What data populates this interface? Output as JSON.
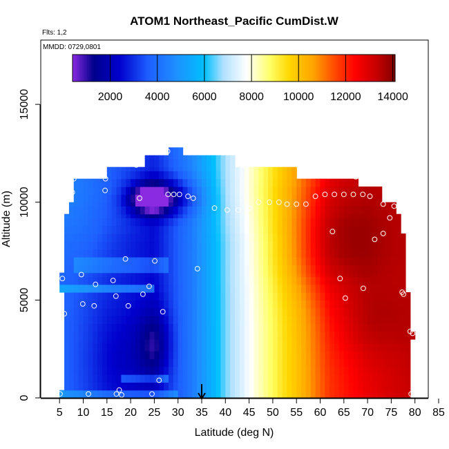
{
  "chart_data": {
    "type": "heatmap",
    "title": "ATOM1 Northeast_Pacific CumDist.W",
    "annotations": {
      "flights": "Flts: 1,2",
      "dates": "MMDD: 0729,0801"
    },
    "xlabel": "Latitude (deg N)",
    "ylabel": "Altitude (m)",
    "xlim": [
      5,
      85
    ],
    "ylim": [
      0,
      17500
    ],
    "xticks": [
      5,
      10,
      15,
      20,
      25,
      30,
      35,
      40,
      45,
      50,
      55,
      60,
      65,
      70,
      75,
      80,
      85
    ],
    "yticks": [
      0,
      5000,
      10000,
      15000
    ],
    "x_tick_labels": [
      "5",
      "10",
      "15",
      "20",
      "25",
      "30",
      "35",
      "40",
      "45",
      "50",
      "55",
      "60",
      "65",
      "70",
      "75",
      "80",
      "85"
    ],
    "y_tick_labels": [
      "0",
      "5000",
      "10000",
      "15000"
    ],
    "colorbar": {
      "range": [
        400,
        14100
      ],
      "ticks": [
        2000,
        4000,
        6000,
        8000,
        10000,
        12000,
        14000
      ],
      "tick_labels": [
        "2000",
        "4000",
        "6000",
        "8000",
        "10000",
        "12000",
        "14000"
      ],
      "dividers": [
        400,
        2000,
        4000,
        6000,
        8000,
        10000,
        12000,
        14000
      ],
      "stops": [
        {
          "v": 400,
          "color": "#8a2be2"
        },
        {
          "v": 1300,
          "color": "#00008b"
        },
        {
          "v": 2400,
          "color": "#0000cd"
        },
        {
          "v": 3600,
          "color": "#1e5eff"
        },
        {
          "v": 4800,
          "color": "#1e90ff"
        },
        {
          "v": 6000,
          "color": "#00bfff"
        },
        {
          "v": 6800,
          "color": "#b0e0ff"
        },
        {
          "v": 7800,
          "color": "#ffffff"
        },
        {
          "v": 8800,
          "color": "#ffff66"
        },
        {
          "v": 9600,
          "color": "#ffd700"
        },
        {
          "v": 10600,
          "color": "#ffa500"
        },
        {
          "v": 11600,
          "color": "#ff4500"
        },
        {
          "v": 12400,
          "color": "#ff0000"
        },
        {
          "v": 13400,
          "color": "#c00000"
        },
        {
          "v": 14100,
          "color": "#800000"
        }
      ]
    },
    "arrow_marker": {
      "latitude": 35
    },
    "grid": false,
    "legend": "none",
    "coverage": [
      {
        "y0": 0,
        "y1": 400,
        "x0": 5,
        "x1": 79
      },
      {
        "y0": 400,
        "y1": 3000,
        "x0": 6,
        "x1": 79
      },
      {
        "y0": 3000,
        "y1": 3400,
        "x0": 6,
        "x1": 80
      },
      {
        "y0": 3400,
        "y1": 5400,
        "x0": 6,
        "x1": 79
      },
      {
        "y0": 5400,
        "y1": 6400,
        "x0": 5,
        "x1": 78
      },
      {
        "y0": 6400,
        "y1": 8400,
        "x0": 6,
        "x1": 78
      },
      {
        "y0": 8400,
        "y1": 9400,
        "x0": 6,
        "x1": 77
      },
      {
        "y0": 9400,
        "y1": 10000,
        "x0": 7,
        "x1": 76
      },
      {
        "y0": 10000,
        "y1": 10800,
        "x0": 8,
        "x1": 73
      },
      {
        "y0": 10800,
        "y1": 11200,
        "x0": 8,
        "x1": 68
      },
      {
        "y0": 11200,
        "y1": 11800,
        "x0": 15,
        "x1": 55
      },
      {
        "y0": 11800,
        "y1": 12400,
        "x0": 23,
        "x1": 42
      },
      {
        "y0": 12400,
        "y1": 12800,
        "x0": 28,
        "x1": 31
      }
    ],
    "value_field": {
      "base": {
        "x": [
          5,
          15,
          25,
          33,
          40,
          47,
          55,
          62,
          70,
          79
        ],
        "v": [
          3800,
          3000,
          2500,
          4300,
          6500,
          8200,
          10000,
          11800,
          12700,
          13300
        ]
      },
      "upper_shift": {
        "x": [
          5,
          15,
          25,
          35,
          45,
          55,
          65,
          75,
          80
        ],
        "dv": [
          800,
          700,
          400,
          300,
          300,
          600,
          800,
          300,
          0
        ]
      },
      "blobs": [
        {
          "x": 24,
          "y": 10200,
          "sx": 3,
          "sy": 500,
          "dv": -3000
        },
        {
          "x": 28,
          "y": 10300,
          "sx": 5,
          "sy": 700,
          "dv": -1800
        },
        {
          "x": 25,
          "y": 2800,
          "sx": 2.5,
          "sy": 1200,
          "dv": -1300
        },
        {
          "x": 18,
          "y": 2000,
          "sx": 5,
          "sy": 1800,
          "dv": -600
        },
        {
          "x": 63,
          "y": 7800,
          "sx": 8,
          "sy": 1700,
          "dv": 1600
        },
        {
          "x": 70,
          "y": 4000,
          "sx": 6,
          "sy": 1400,
          "dv": 700
        },
        {
          "x": 11,
          "y": 8200,
          "sx": 5,
          "sy": 1200,
          "dv": 400
        }
      ],
      "bands": [
        {
          "y0": 5400,
          "y1": 5800,
          "x0": 5,
          "x1": 25,
          "dv": 1500
        },
        {
          "y0": 6600,
          "y1": 7200,
          "x0": 8,
          "x1": 28,
          "dv": 900
        },
        {
          "y0": 1000,
          "y1": 1400,
          "x0": 18,
          "x1": 28,
          "dv": 1200
        },
        {
          "y0": 0,
          "y1": 400,
          "x0": 5,
          "x1": 30,
          "dv": 1200
        }
      ]
    },
    "points": [
      [
        5.1,
        200
      ],
      [
        11.1,
        200
      ],
      [
        17.6,
        400
      ],
      [
        17,
        200
      ],
      [
        18.1,
        150
      ],
      [
        24.5,
        200
      ],
      [
        26,
        900
      ],
      [
        26.8,
        4400
      ],
      [
        6,
        4300
      ],
      [
        9.9,
        4800
      ],
      [
        12.3,
        4700
      ],
      [
        19.5,
        4700
      ],
      [
        16.9,
        5200
      ],
      [
        22.6,
        5300
      ],
      [
        23.9,
        5700
      ],
      [
        12.6,
        5800
      ],
      [
        5.6,
        6100
      ],
      [
        9.6,
        6300
      ],
      [
        16.3,
        6000
      ],
      [
        18.9,
        7100
      ],
      [
        25.1,
        7000
      ],
      [
        34.1,
        6600
      ],
      [
        7.7,
        10500
      ],
      [
        8,
        11200
      ],
      [
        14.6,
        10600
      ],
      [
        14.7,
        11200
      ],
      [
        21.9,
        10200
      ],
      [
        27.9,
        10400
      ],
      [
        29.1,
        10400
      ],
      [
        30.3,
        10400
      ],
      [
        32.1,
        10300
      ],
      [
        33.2,
        10200
      ],
      [
        21.2,
        11900
      ],
      [
        27.8,
        12600
      ],
      [
        32.2,
        12600
      ],
      [
        37.7,
        9700
      ],
      [
        40.4,
        9600
      ],
      [
        42.7,
        9600
      ],
      [
        45,
        9700
      ],
      [
        47,
        10000
      ],
      [
        49.3,
        10000
      ],
      [
        51.3,
        10000
      ],
      [
        53,
        9900
      ],
      [
        55,
        9900
      ],
      [
        57,
        9900
      ],
      [
        59,
        10300
      ],
      [
        61,
        10400
      ],
      [
        63,
        10400
      ],
      [
        65,
        10400
      ],
      [
        67,
        10400
      ],
      [
        69,
        10400
      ],
      [
        70.5,
        10300
      ],
      [
        67.5,
        11300
      ],
      [
        73.3,
        9900
      ],
      [
        75.6,
        9800
      ],
      [
        74.7,
        9200
      ],
      [
        73.3,
        8400
      ],
      [
        71.5,
        8100
      ],
      [
        62.6,
        8500
      ],
      [
        64.2,
        6100
      ],
      [
        69.1,
        5600
      ],
      [
        65.3,
        5100
      ],
      [
        77.3,
        5400
      ],
      [
        77.6,
        5300
      ],
      [
        79,
        3400
      ],
      [
        79.5,
        3300
      ],
      [
        79.2,
        200
      ]
    ]
  }
}
